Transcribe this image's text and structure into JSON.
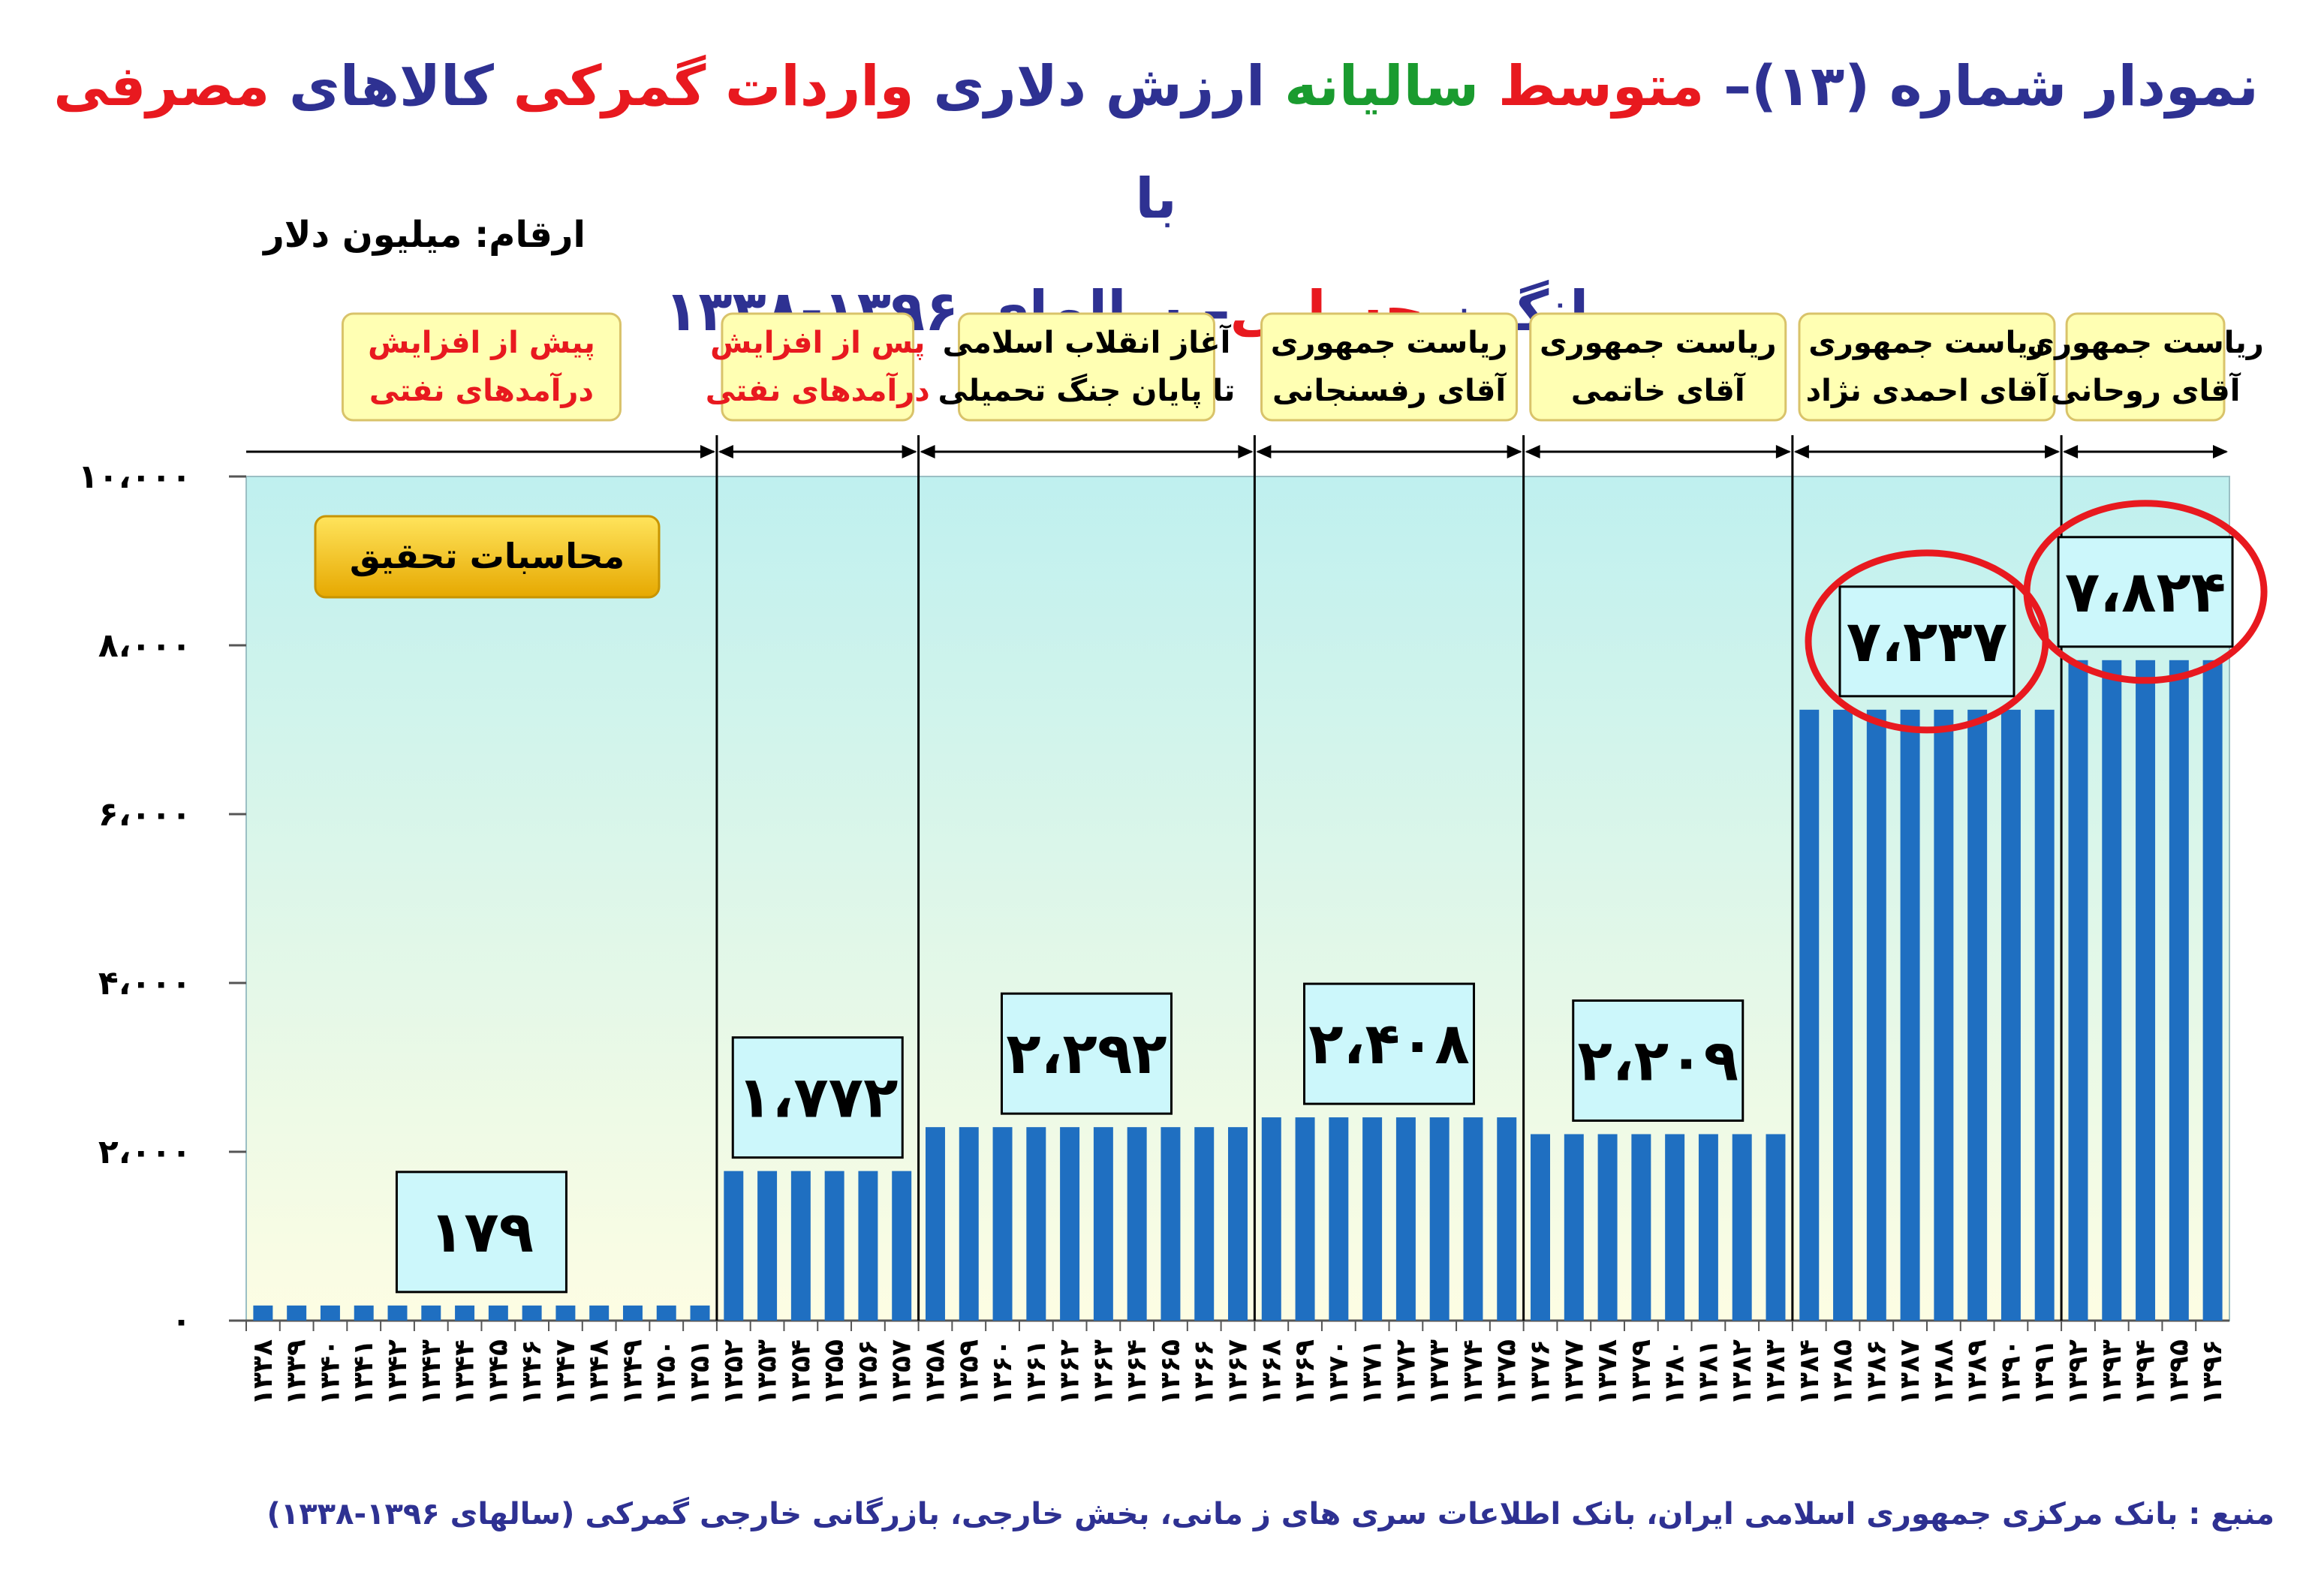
{
  "title": {
    "line1": [
      {
        "text": "نمودار شماره (۱۳)– ",
        "color": "blue"
      },
      {
        "text": "متوسط ",
        "color": "red"
      },
      {
        "text": "سالیانه ",
        "color": "green"
      },
      {
        "text": "ارزش دلاری ",
        "color": "blue"
      },
      {
        "text": "واردات گمرکی ",
        "color": "red"
      },
      {
        "text": "کالاهای ",
        "color": "blue"
      },
      {
        "text": "مصرفی ",
        "color": "red"
      },
      {
        "text": "با",
        "color": "blue"
      }
    ],
    "line2": [
      {
        "text": "میانگین ",
        "color": "blue"
      },
      {
        "text": "حسابی",
        "color": "red"
      },
      {
        "text": "– سالهای ۱۳۹۶-۱۳۳۸",
        "color": "blue"
      }
    ]
  },
  "units_label": "ارقام: میلیون دلار",
  "badge_label": "محاسبات تحقیق",
  "source": "منبع : بانک مرکزی جمهوری اسلامی ایران، بانک اطلاعات سری های ز مانی، بخش خارجی، بازرگانی خارجی گمرکی (سالهای ۱۳۹۶-۱۳۳۸)",
  "colors": {
    "bar": "#1f6fc1",
    "title_blue": "#2e3192",
    "title_red": "#e8191f",
    "title_green": "#1a9b2f",
    "period_label_red": "#e8191f",
    "period_label_black": "#000000",
    "period_box_fill": "#ffffb3",
    "period_box_border": "#d9c36a",
    "value_box_fill": "#ccf7fb",
    "highlight_circle": "#e8191f",
    "badge_fill": "#f2c200",
    "plot_top": "#bff0ef",
    "plot_bottom": "#fdfde3"
  },
  "chart_data": {
    "type": "bar",
    "ylabel": "ارقام: میلیون دلار",
    "ylim": [
      0,
      10000
    ],
    "y_ticks": [
      "۰",
      "۲،۰۰۰",
      "۴،۰۰۰",
      "۶،۰۰۰",
      "۸،۰۰۰",
      "۱۰،۰۰۰"
    ],
    "grid": false,
    "years": [
      "۱۳۳۸",
      "۱۳۳۹",
      "۱۳۴۰",
      "۱۳۴۱",
      "۱۳۴۲",
      "۱۳۴۳",
      "۱۳۴۴",
      "۱۳۴۵",
      "۱۳۴۶",
      "۱۳۴۷",
      "۱۳۴۸",
      "۱۳۴۹",
      "۱۳۵۰",
      "۱۳۵۱",
      "۱۳۵۲",
      "۱۳۵۳",
      "۱۳۵۴",
      "۱۳۵۵",
      "۱۳۵۶",
      "۱۳۵۷",
      "۱۳۵۸",
      "۱۳۵۹",
      "۱۳۶۰",
      "۱۳۶۱",
      "۱۳۶۲",
      "۱۳۶۳",
      "۱۳۶۴",
      "۱۳۶۵",
      "۱۳۶۶",
      "۱۳۶۷",
      "۱۳۶۸",
      "۱۳۶۹",
      "۱۳۷۰",
      "۱۳۷۱",
      "۱۳۷۲",
      "۱۳۷۳",
      "۱۳۷۴",
      "۱۳۷۵",
      "۱۳۷۶",
      "۱۳۷۷",
      "۱۳۷۸",
      "۱۳۷۹",
      "۱۳۸۰",
      "۱۳۸۱",
      "۱۳۸۲",
      "۱۳۸۳",
      "۱۳۸۴",
      "۱۳۸۵",
      "۱۳۸۶",
      "۱۳۸۷",
      "۱۳۸۸",
      "۱۳۸۹",
      "۱۳۹۰",
      "۱۳۹۱",
      "۱۳۹۲",
      "۱۳۹۳",
      "۱۳۹۴",
      "۱۳۹۵",
      "۱۳۹۶"
    ],
    "periods": [
      {
        "label_lines": [
          "پیش از افزایش",
          "درآمدهای نفتی"
        ],
        "label_color": "red",
        "years": 14,
        "value": 179,
        "value_label": "۱۷۹",
        "highlight": false
      },
      {
        "label_lines": [
          "پس از افزایش",
          "درآمدهای نفتی"
        ],
        "label_color": "red",
        "years": 6,
        "value": 1772,
        "value_label": "۱،۷۷۲",
        "highlight": false
      },
      {
        "label_lines": [
          "آغاز انقلاب اسلامی",
          "تا پایان جنگ تحمیلی"
        ],
        "label_color": "black",
        "years": 10,
        "value": 2292,
        "value_label": "۲،۲۹۲",
        "highlight": false
      },
      {
        "label_lines": [
          "ریاست جمهوری",
          "آقای رفسنجانی"
        ],
        "label_color": "black",
        "years": 8,
        "value": 2408,
        "value_label": "۲،۴۰۸",
        "highlight": false
      },
      {
        "label_lines": [
          "ریاست جمهوری",
          "آقای خاتمی"
        ],
        "label_color": "black",
        "years": 8,
        "value": 2209,
        "value_label": "۲،۲۰۹",
        "highlight": false
      },
      {
        "label_lines": [
          "ریاست جمهوری",
          "آقای احمدی نژاد"
        ],
        "label_color": "black",
        "years": 8,
        "value": 7237,
        "value_label": "۷،۲۳۷",
        "highlight": true
      },
      {
        "label_lines": [
          "ریاست جمهوری",
          "آقای روحانی"
        ],
        "label_color": "black",
        "years": 5,
        "value": 7824,
        "value_label": "۷،۸۲۴",
        "highlight": true
      }
    ]
  }
}
